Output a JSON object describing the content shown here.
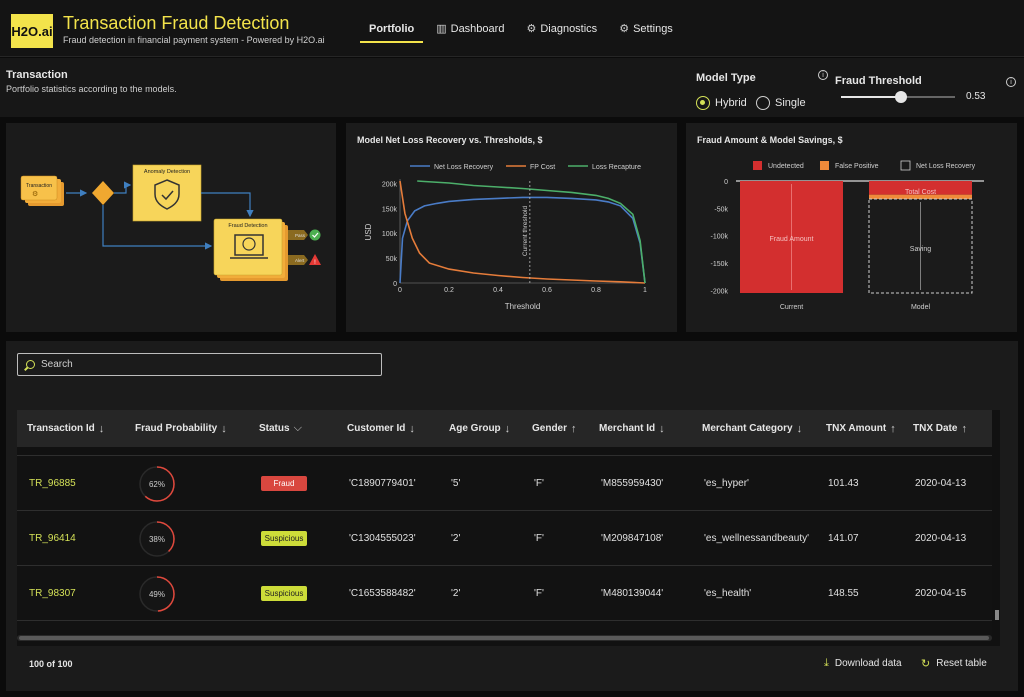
{
  "header": {
    "logo": "H2O.ai",
    "title": "Transaction Fraud Detection",
    "subtitle": "Fraud detection in financial payment system - Powered by H2O.ai",
    "tabs": [
      {
        "label": "Portfolio",
        "icon": "",
        "active": true
      },
      {
        "label": "Dashboard",
        "icon": "bar-chart-icon",
        "active": false
      },
      {
        "label": "Diagnostics",
        "icon": "gear-icon",
        "active": false
      },
      {
        "label": "Settings",
        "icon": "gear-icon",
        "active": false
      }
    ]
  },
  "controls": {
    "section_title": "Transaction",
    "section_subtitle": "Portfolio statistics according to the models.",
    "model_type_label": "Model Type",
    "model_type_options": [
      "Hybrid",
      "Single"
    ],
    "model_type_selected": "Hybrid",
    "threshold_label": "Fraud Threshold",
    "threshold_value": "0.53",
    "threshold_fraction": 0.53
  },
  "flow": {
    "nodes": {
      "transaction": "Transaction",
      "anomaly": "Anomaly Detection",
      "fraud": "Fraud Detection",
      "pass": "Pass",
      "alert": "Alert"
    }
  },
  "chart_data": [
    {
      "type": "line",
      "title": "Model Net Loss Recovery vs. Thresholds, $",
      "xlabel": "Threshold",
      "ylabel": "USD",
      "xlim": [
        0,
        1
      ],
      "ylim": [
        0,
        205000
      ],
      "xticks": [
        "0",
        "0.2",
        "0.4",
        "0.6",
        "0.8",
        "1"
      ],
      "yticks": [
        "0",
        "50k",
        "100k",
        "150k",
        "200k"
      ],
      "legend_position": "top",
      "annotation": "Current threshold",
      "annotation_x": 0.53,
      "series": [
        {
          "name": "Net Loss Recovery",
          "color": "#4a7cc7",
          "points": [
            [
              0,
              0
            ],
            [
              0.01,
              90000
            ],
            [
              0.03,
              125000
            ],
            [
              0.06,
              145000
            ],
            [
              0.1,
              155000
            ],
            [
              0.15,
              160000
            ],
            [
              0.2,
              164000
            ],
            [
              0.3,
              168000
            ],
            [
              0.4,
              170000
            ],
            [
              0.5,
              172000
            ],
            [
              0.6,
              172000
            ],
            [
              0.7,
              170000
            ],
            [
              0.8,
              167000
            ],
            [
              0.85,
              163000
            ],
            [
              0.9,
              155000
            ],
            [
              0.95,
              130000
            ],
            [
              0.98,
              80000
            ],
            [
              1,
              0
            ]
          ]
        },
        {
          "name": "FP Cost",
          "color": "#e57c3a",
          "points": [
            [
              0,
              205000
            ],
            [
              0.02,
              140000
            ],
            [
              0.05,
              90000
            ],
            [
              0.08,
              60000
            ],
            [
              0.12,
              40000
            ],
            [
              0.2,
              28000
            ],
            [
              0.3,
              20000
            ],
            [
              0.4,
              15000
            ],
            [
              0.5,
              11000
            ],
            [
              0.6,
              8000
            ],
            [
              0.7,
              6000
            ],
            [
              0.8,
              4000
            ],
            [
              0.9,
              2500
            ],
            [
              1,
              0
            ]
          ]
        },
        {
          "name": "Loss Recapture",
          "color": "#4caf6a",
          "points": [
            [
              0.07,
              205000
            ],
            [
              0.1,
              204000
            ],
            [
              0.2,
              201000
            ],
            [
              0.3,
              196000
            ],
            [
              0.4,
              193000
            ],
            [
              0.5,
              190000
            ],
            [
              0.6,
              186000
            ],
            [
              0.7,
              182000
            ],
            [
              0.8,
              176000
            ],
            [
              0.85,
              170000
            ],
            [
              0.9,
              160000
            ],
            [
              0.95,
              138000
            ],
            [
              0.98,
              85000
            ],
            [
              1,
              0
            ]
          ]
        }
      ]
    },
    {
      "type": "bar",
      "title": "Fraud Amount & Model Savings, $",
      "categories": [
        "Current",
        "Model"
      ],
      "ylim": [
        -205000,
        0
      ],
      "yticks": [
        "0",
        "-50k",
        "-100k",
        "-150k",
        "-200k"
      ],
      "legend_position": "top",
      "legend": [
        {
          "name": "Undetected",
          "color": "#d32f2f"
        },
        {
          "name": "False Positive",
          "color": "#ef8a3a"
        },
        {
          "name": "Net Loss Recovery",
          "color": "none"
        }
      ],
      "series": [
        {
          "name": "Undetected",
          "values": [
            -205000,
            -25000
          ]
        },
        {
          "name": "False Positive",
          "values": [
            0,
            -8000
          ]
        },
        {
          "name": "Net Loss Recovery",
          "values": [
            0,
            -172000
          ]
        }
      ],
      "annotations": [
        "Fraud Amount",
        "Total Cost",
        "Saving"
      ]
    }
  ],
  "table": {
    "search_placeholder": "Search",
    "columns": [
      {
        "label": "Transaction Id",
        "arrow": "↓"
      },
      {
        "label": "Fraud Probability",
        "arrow": "↓"
      },
      {
        "label": "Status",
        "arrow": "⌵"
      },
      {
        "label": "Customer Id",
        "arrow": "↓"
      },
      {
        "label": "Age Group",
        "arrow": "↓"
      },
      {
        "label": "Gender",
        "arrow": "↑"
      },
      {
        "label": "Merchant Id",
        "arrow": "↓"
      },
      {
        "label": "Merchant Category",
        "arrow": "↓"
      },
      {
        "label": "TNX Amount",
        "arrow": "↑"
      },
      {
        "label": "TNX Date",
        "arrow": "↑"
      }
    ],
    "rows": [
      {
        "id": "TR_96885",
        "prob_label": "62%",
        "prob": 0.62,
        "status": "Fraud",
        "customer": "'C1890779401'",
        "age": "'5'",
        "gender": "'F'",
        "merchant": "'M855959430'",
        "category": "'es_hyper'",
        "amount": "101.43",
        "date": "2020-04-13"
      },
      {
        "id": "TR_96414",
        "prob_label": "38%",
        "prob": 0.38,
        "status": "Suspicious",
        "customer": "'C1304555023'",
        "age": "'2'",
        "gender": "'F'",
        "merchant": "'M209847108'",
        "category": "'es_wellnessandbeauty'",
        "amount": "141.07",
        "date": "2020-04-13"
      },
      {
        "id": "TR_98307",
        "prob_label": "49%",
        "prob": 0.49,
        "status": "Suspicious",
        "customer": "'C1653588482'",
        "age": "'2'",
        "gender": "'F'",
        "merchant": "'M480139044'",
        "category": "'es_health'",
        "amount": "148.55",
        "date": "2020-04-15"
      }
    ],
    "footer_count": "100 of 100",
    "download_label": "Download data",
    "reset_label": "Reset table",
    "status_colors": {
      "Fraud": "#d9473f",
      "Suspicious": "#cddc39"
    }
  }
}
